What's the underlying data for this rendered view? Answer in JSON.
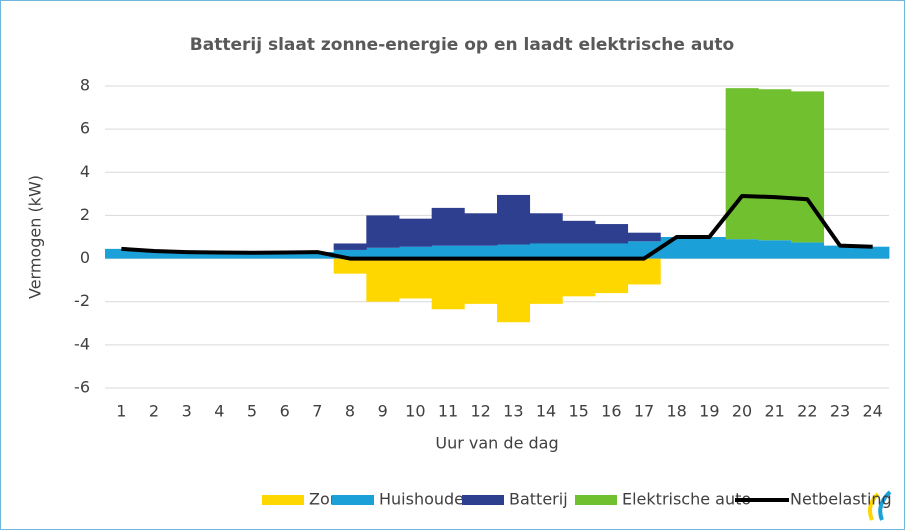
{
  "chart_data": {
    "type": "stacked_bar",
    "title": "Batterij slaat zonne-energie op en laadt elektrische auto",
    "x_label": "Uur van de dag",
    "y_label": "Vermogen (kW)",
    "categories": [
      "1",
      "2",
      "3",
      "4",
      "5",
      "6",
      "7",
      "8",
      "9",
      "10",
      "11",
      "12",
      "13",
      "14",
      "15",
      "16",
      "17",
      "18",
      "19",
      "20",
      "21",
      "22",
      "23",
      "24"
    ],
    "series": [
      {
        "name": "Zon",
        "color": "#ffd700",
        "values": [
          0,
          0,
          0,
          0,
          0,
          0,
          0,
          -0.7,
          -2.0,
          -1.85,
          -2.35,
          -2.1,
          -2.95,
          -2.1,
          -1.75,
          -1.6,
          -1.2,
          0,
          0,
          0,
          0,
          0,
          0,
          0
        ]
      },
      {
        "name": "Huishouden",
        "color": "#1ba1d8",
        "values": [
          0.45,
          0.35,
          0.3,
          0.28,
          0.27,
          0.28,
          0.3,
          0.4,
          0.5,
          0.55,
          0.6,
          0.6,
          0.65,
          0.7,
          0.7,
          0.7,
          0.8,
          1.0,
          1.0,
          0.9,
          0.85,
          0.75,
          0.6,
          0.55
        ]
      },
      {
        "name": "Batterij",
        "color": "#2e3f8f",
        "values": [
          0,
          0,
          0,
          0,
          0,
          0,
          0,
          0.3,
          1.5,
          1.3,
          1.75,
          1.5,
          2.3,
          1.4,
          1.05,
          0.9,
          0.4,
          0,
          0,
          0,
          0,
          0,
          0,
          0
        ]
      },
      {
        "name": "Elektrische auto",
        "color": "#70c030",
        "values": [
          0,
          0,
          0,
          0,
          0,
          0,
          0,
          0,
          0,
          0,
          0,
          0,
          0,
          0,
          0,
          0,
          0,
          0,
          0,
          7.0,
          7.0,
          7.0,
          0,
          0
        ]
      },
      {
        "name": "Netbelasting",
        "color": "#000000",
        "type": "line",
        "values": [
          0.45,
          0.35,
          0.3,
          0.28,
          0.27,
          0.28,
          0.3,
          0,
          0,
          0,
          0,
          0,
          0,
          0,
          0,
          0,
          0,
          1.0,
          1.0,
          2.9,
          2.85,
          2.75,
          0.6,
          0.55
        ]
      }
    ],
    "ylim": [
      -6,
      8
    ],
    "yticks": [
      -6,
      -4,
      -2,
      0,
      2,
      4,
      6,
      8
    ],
    "grid": true
  }
}
